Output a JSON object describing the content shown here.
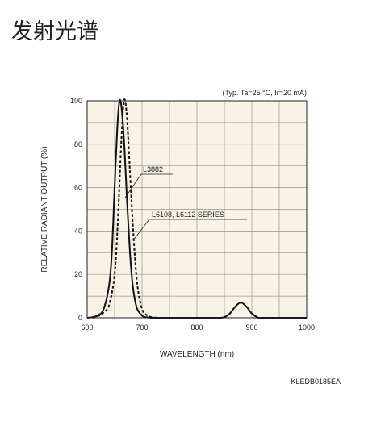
{
  "heading": "发射光谱",
  "chart_data": {
    "type": "line",
    "condition_note": "(Typ. Ta=25 °C, Ir=20 mA)",
    "xlabel": "WAVELENGTH (nm)",
    "ylabel": "RELATIVE RADIANT OUTPUT (%)",
    "figure_code": "KLEDB0185EA",
    "xlim": [
      600,
      1000
    ],
    "ylim": [
      0,
      100
    ],
    "x_ticks": [
      600,
      700,
      800,
      900,
      1000
    ],
    "y_ticks": [
      0,
      20,
      40,
      60,
      80,
      100
    ],
    "grid": true,
    "background": "#f7f3e6",
    "series": [
      {
        "name": "L3882",
        "style": "solid",
        "points": [
          [
            600,
            0
          ],
          [
            610,
            0.3
          ],
          [
            620,
            1.2
          ],
          [
            630,
            4
          ],
          [
            640,
            15
          ],
          [
            645,
            30
          ],
          [
            650,
            60
          ],
          [
            655,
            88
          ],
          [
            659,
            100
          ],
          [
            663,
            96
          ],
          [
            668,
            78
          ],
          [
            673,
            52
          ],
          [
            678,
            30
          ],
          [
            683,
            15
          ],
          [
            690,
            5
          ],
          [
            700,
            1
          ],
          [
            710,
            0.2
          ],
          [
            720,
            0
          ],
          [
            750,
            0
          ],
          [
            800,
            0
          ],
          [
            840,
            0
          ],
          [
            850,
            0.3
          ],
          [
            860,
            2
          ],
          [
            870,
            5.2
          ],
          [
            880,
            7
          ],
          [
            890,
            5.2
          ],
          [
            900,
            2
          ],
          [
            910,
            0.3
          ],
          [
            920,
            0
          ],
          [
            1000,
            0
          ]
        ]
      },
      {
        "name": "L6108, L6112 SERIES",
        "style": "dashed",
        "points": [
          [
            610,
            0
          ],
          [
            620,
            0.8
          ],
          [
            630,
            2.5
          ],
          [
            640,
            6
          ],
          [
            650,
            20
          ],
          [
            656,
            45
          ],
          [
            662,
            80
          ],
          [
            667,
            100
          ],
          [
            672,
            94
          ],
          [
            677,
            72
          ],
          [
            682,
            48
          ],
          [
            687,
            28
          ],
          [
            692,
            14
          ],
          [
            700,
            4
          ],
          [
            710,
            1
          ],
          [
            720,
            0.2
          ],
          [
            730,
            0
          ]
        ]
      }
    ],
    "annotations": [
      {
        "text": "L3882",
        "series": 0
      },
      {
        "text": "L6108, L6112 SERIES",
        "series": 1
      }
    ]
  }
}
